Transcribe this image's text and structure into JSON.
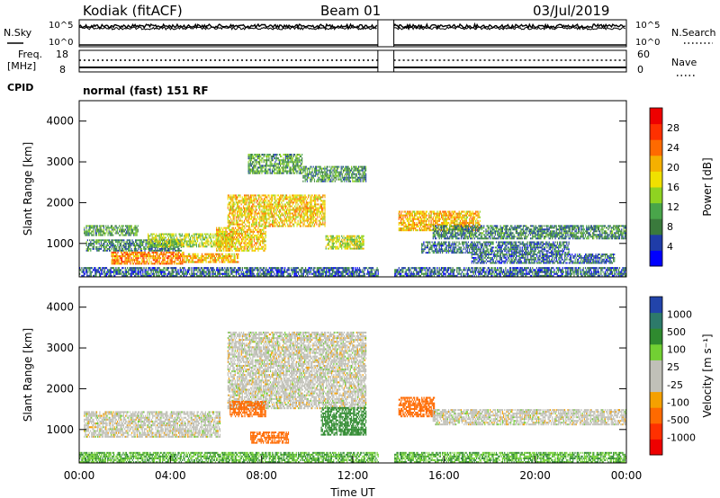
{
  "header": {
    "station": "Kodiak (fitACF)",
    "beam": "Beam 01",
    "date": "03/Jul/2019"
  },
  "top_panels": {
    "nsky_label": "N.Sky",
    "nsearch_label": "N.Search",
    "nsky_ticks": [
      "10^5",
      "10^0"
    ],
    "nsearch_ticks": [
      "10^5",
      "10^0"
    ],
    "freq_label_1": "Freq.",
    "freq_label_2": "[MHz]",
    "freq_ticks": [
      "18",
      "8"
    ],
    "nave_label": "Nave",
    "nave_ticks": [
      "60",
      "0"
    ],
    "cpid_label": "CPID",
    "cpid_value": "normal (fast) 151 RF"
  },
  "colors": {
    "power_scale": [
      "#0000ff",
      "#1f3ca8",
      "#3a7a3c",
      "#49a54a",
      "#8fd321",
      "#f0e000",
      "#f5b000",
      "#ff6a00",
      "#ff3000",
      "#ee0000"
    ],
    "velocity_scale": [
      "#ee0000",
      "#ff3000",
      "#ff6a00",
      "#f5a000",
      "#c0c0b8",
      "#c0c0b8",
      "#72d033",
      "#2f8a2f",
      "#2d7a6a",
      "#2244aa"
    ],
    "ground_scatter": "#b8b8b0"
  },
  "chart_data": [
    {
      "type": "heatmap",
      "name": "power",
      "xlabel": "",
      "ylabel": "Slant Range [km]",
      "x_range_hours": [
        0,
        24
      ],
      "ylim": [
        180,
        4500
      ],
      "y_ticks": [
        "4000",
        "3000",
        "2000",
        "1000"
      ],
      "colorbar": {
        "label": "Power [dB]",
        "ticks": [
          "28",
          "24",
          "20",
          "16",
          "12",
          "8",
          "4"
        ],
        "range": [
          0,
          30
        ]
      },
      "data_gap_hours": [
        13.1,
        13.8
      ],
      "regions": [
        {
          "t0": 0.2,
          "t1": 2.6,
          "r0": 1180,
          "r1": 1450,
          "value": 10
        },
        {
          "t0": 0.3,
          "t1": 4.5,
          "r0": 800,
          "r1": 1100,
          "value": 8
        },
        {
          "t0": 1.4,
          "t1": 4.6,
          "r0": 480,
          "r1": 800,
          "value": 22
        },
        {
          "t0": 3.0,
          "t1": 6.8,
          "r0": 900,
          "r1": 1250,
          "value": 14
        },
        {
          "t0": 4.5,
          "t1": 7.0,
          "r0": 520,
          "r1": 760,
          "value": 19
        },
        {
          "t0": 6.5,
          "t1": 10.8,
          "r0": 1400,
          "r1": 2200,
          "value": 18
        },
        {
          "t0": 7.4,
          "t1": 9.8,
          "r0": 2700,
          "r1": 3200,
          "value": 10
        },
        {
          "t0": 9.8,
          "t1": 12.6,
          "r0": 2500,
          "r1": 2900,
          "value": 9
        },
        {
          "t0": 10.8,
          "t1": 12.5,
          "r0": 850,
          "r1": 1200,
          "value": 15
        },
        {
          "t0": 6.0,
          "t1": 8.2,
          "r0": 800,
          "r1": 1400,
          "value": 18
        },
        {
          "t0": 14.0,
          "t1": 17.6,
          "r0": 1300,
          "r1": 1800,
          "value": 19
        },
        {
          "t0": 15.5,
          "t1": 24.0,
          "r0": 1100,
          "r1": 1450,
          "value": 8
        },
        {
          "t0": 15.0,
          "t1": 21.5,
          "r0": 750,
          "r1": 1050,
          "value": 7
        },
        {
          "t0": 17.2,
          "t1": 23.5,
          "r0": 500,
          "r1": 750,
          "value": 6
        },
        {
          "t0": 0.0,
          "t1": 24.0,
          "r0": 180,
          "r1": 420,
          "value": 6
        }
      ]
    },
    {
      "type": "heatmap",
      "name": "velocity",
      "xlabel": "Time UT",
      "ylabel": "Slant Range [km]",
      "x_range_hours": [
        0,
        24
      ],
      "x_ticks": [
        "00:00",
        "04:00",
        "08:00",
        "12:00",
        "16:00",
        "20:00",
        "00:00"
      ],
      "ylim": [
        180,
        4500
      ],
      "y_ticks": [
        "4000",
        "3000",
        "2000",
        "1000"
      ],
      "colorbar": {
        "label": "Velocity [m s^-1]",
        "ticks": [
          "1000",
          "500",
          "100",
          "25",
          "-25",
          "-100",
          "-500",
          "-1000"
        ]
      },
      "data_gap_hours": [
        13.1,
        13.8
      ],
      "regions": [
        {
          "t0": 0.2,
          "t1": 6.2,
          "r0": 800,
          "r1": 1450,
          "value": 0
        },
        {
          "t0": 6.5,
          "t1": 12.6,
          "r0": 1500,
          "r1": 3400,
          "value": 0
        },
        {
          "t0": 6.6,
          "t1": 8.2,
          "r0": 1300,
          "r1": 1700,
          "value": -300
        },
        {
          "t0": 7.5,
          "t1": 9.2,
          "r0": 650,
          "r1": 950,
          "value": -300
        },
        {
          "t0": 10.6,
          "t1": 12.6,
          "r0": 850,
          "r1": 1550,
          "value": 200
        },
        {
          "t0": 14.0,
          "t1": 15.6,
          "r0": 1300,
          "r1": 1800,
          "value": -300
        },
        {
          "t0": 15.5,
          "t1": 24.0,
          "r0": 1100,
          "r1": 1500,
          "value": 0
        },
        {
          "t0": 0.0,
          "t1": 24.0,
          "r0": 180,
          "r1": 450,
          "value": 100
        }
      ]
    }
  ]
}
